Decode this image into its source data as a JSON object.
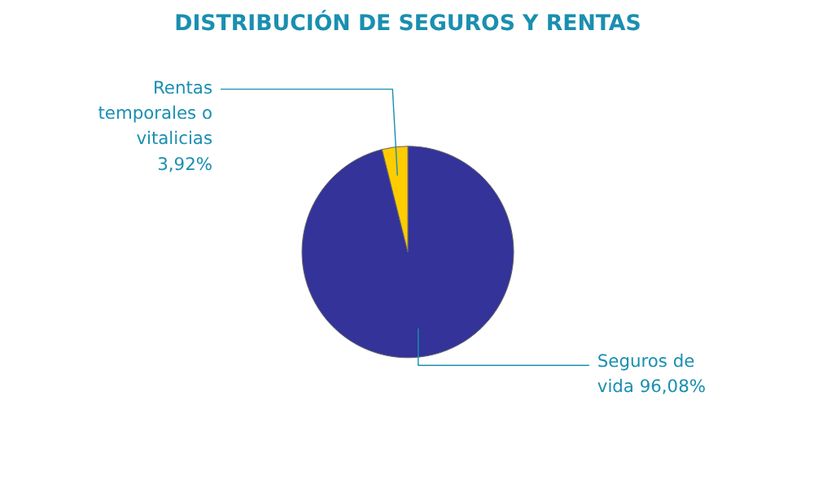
{
  "chart_data": {
    "type": "pie",
    "title": "DISTRIBUCIÓN DE SEGUROS Y RENTAS",
    "categories": [
      "Seguros de vida",
      "Rentas temporales o vitalicias"
    ],
    "values": [
      96.08,
      3.92
    ],
    "colors": [
      "#333399",
      "#ffcc00"
    ],
    "value_labels": [
      "96,08%",
      "3,92%"
    ]
  }
}
